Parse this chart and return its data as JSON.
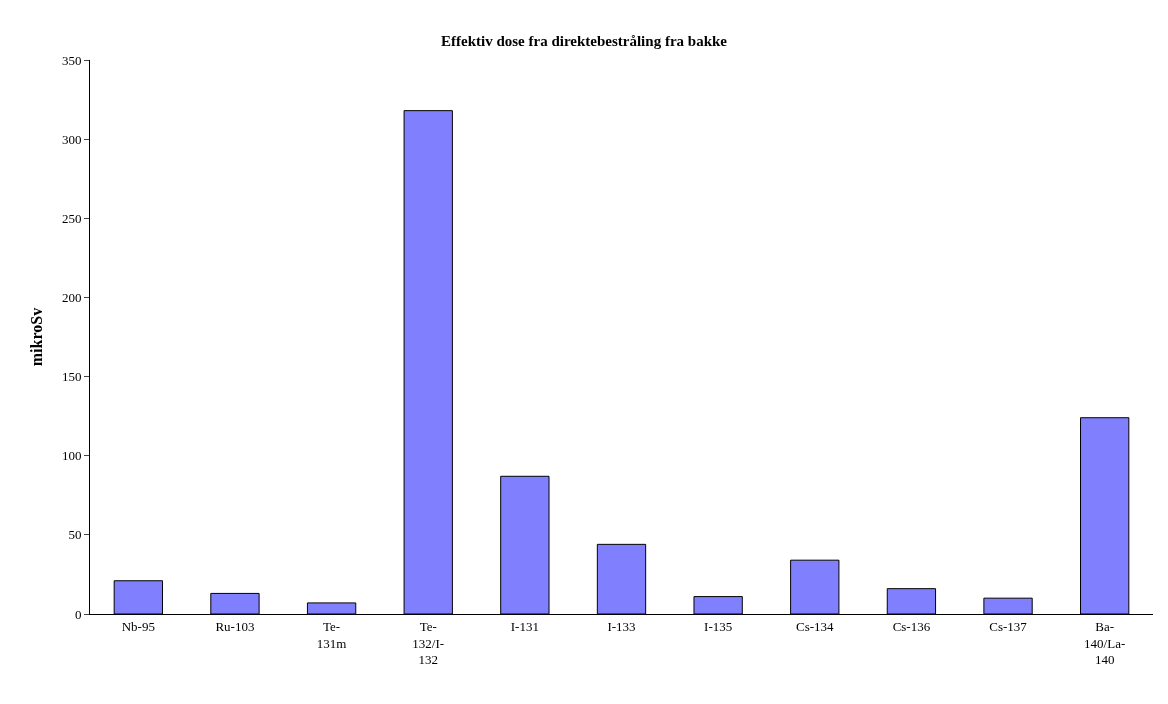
{
  "chart_data": {
    "type": "bar",
    "title": "Effektiv dose fra direktebestråling fra bakke",
    "ylabel": "mikroSv",
    "categories": [
      "Nb-95",
      "Ru-103",
      "Te-131m",
      "Te-132/I-132",
      "I-131",
      "I-133",
      "I-135",
      "Cs-134",
      "Cs-136",
      "Cs-137",
      "Ba-140/La-140"
    ],
    "values": [
      21,
      13,
      7,
      318,
      87,
      44,
      11,
      34,
      16,
      10,
      124
    ],
    "color": "#8080ff",
    "ylim": [
      0,
      350
    ],
    "yticks": [
      0,
      50,
      100,
      150,
      200,
      250,
      300,
      350
    ],
    "legend": false
  }
}
